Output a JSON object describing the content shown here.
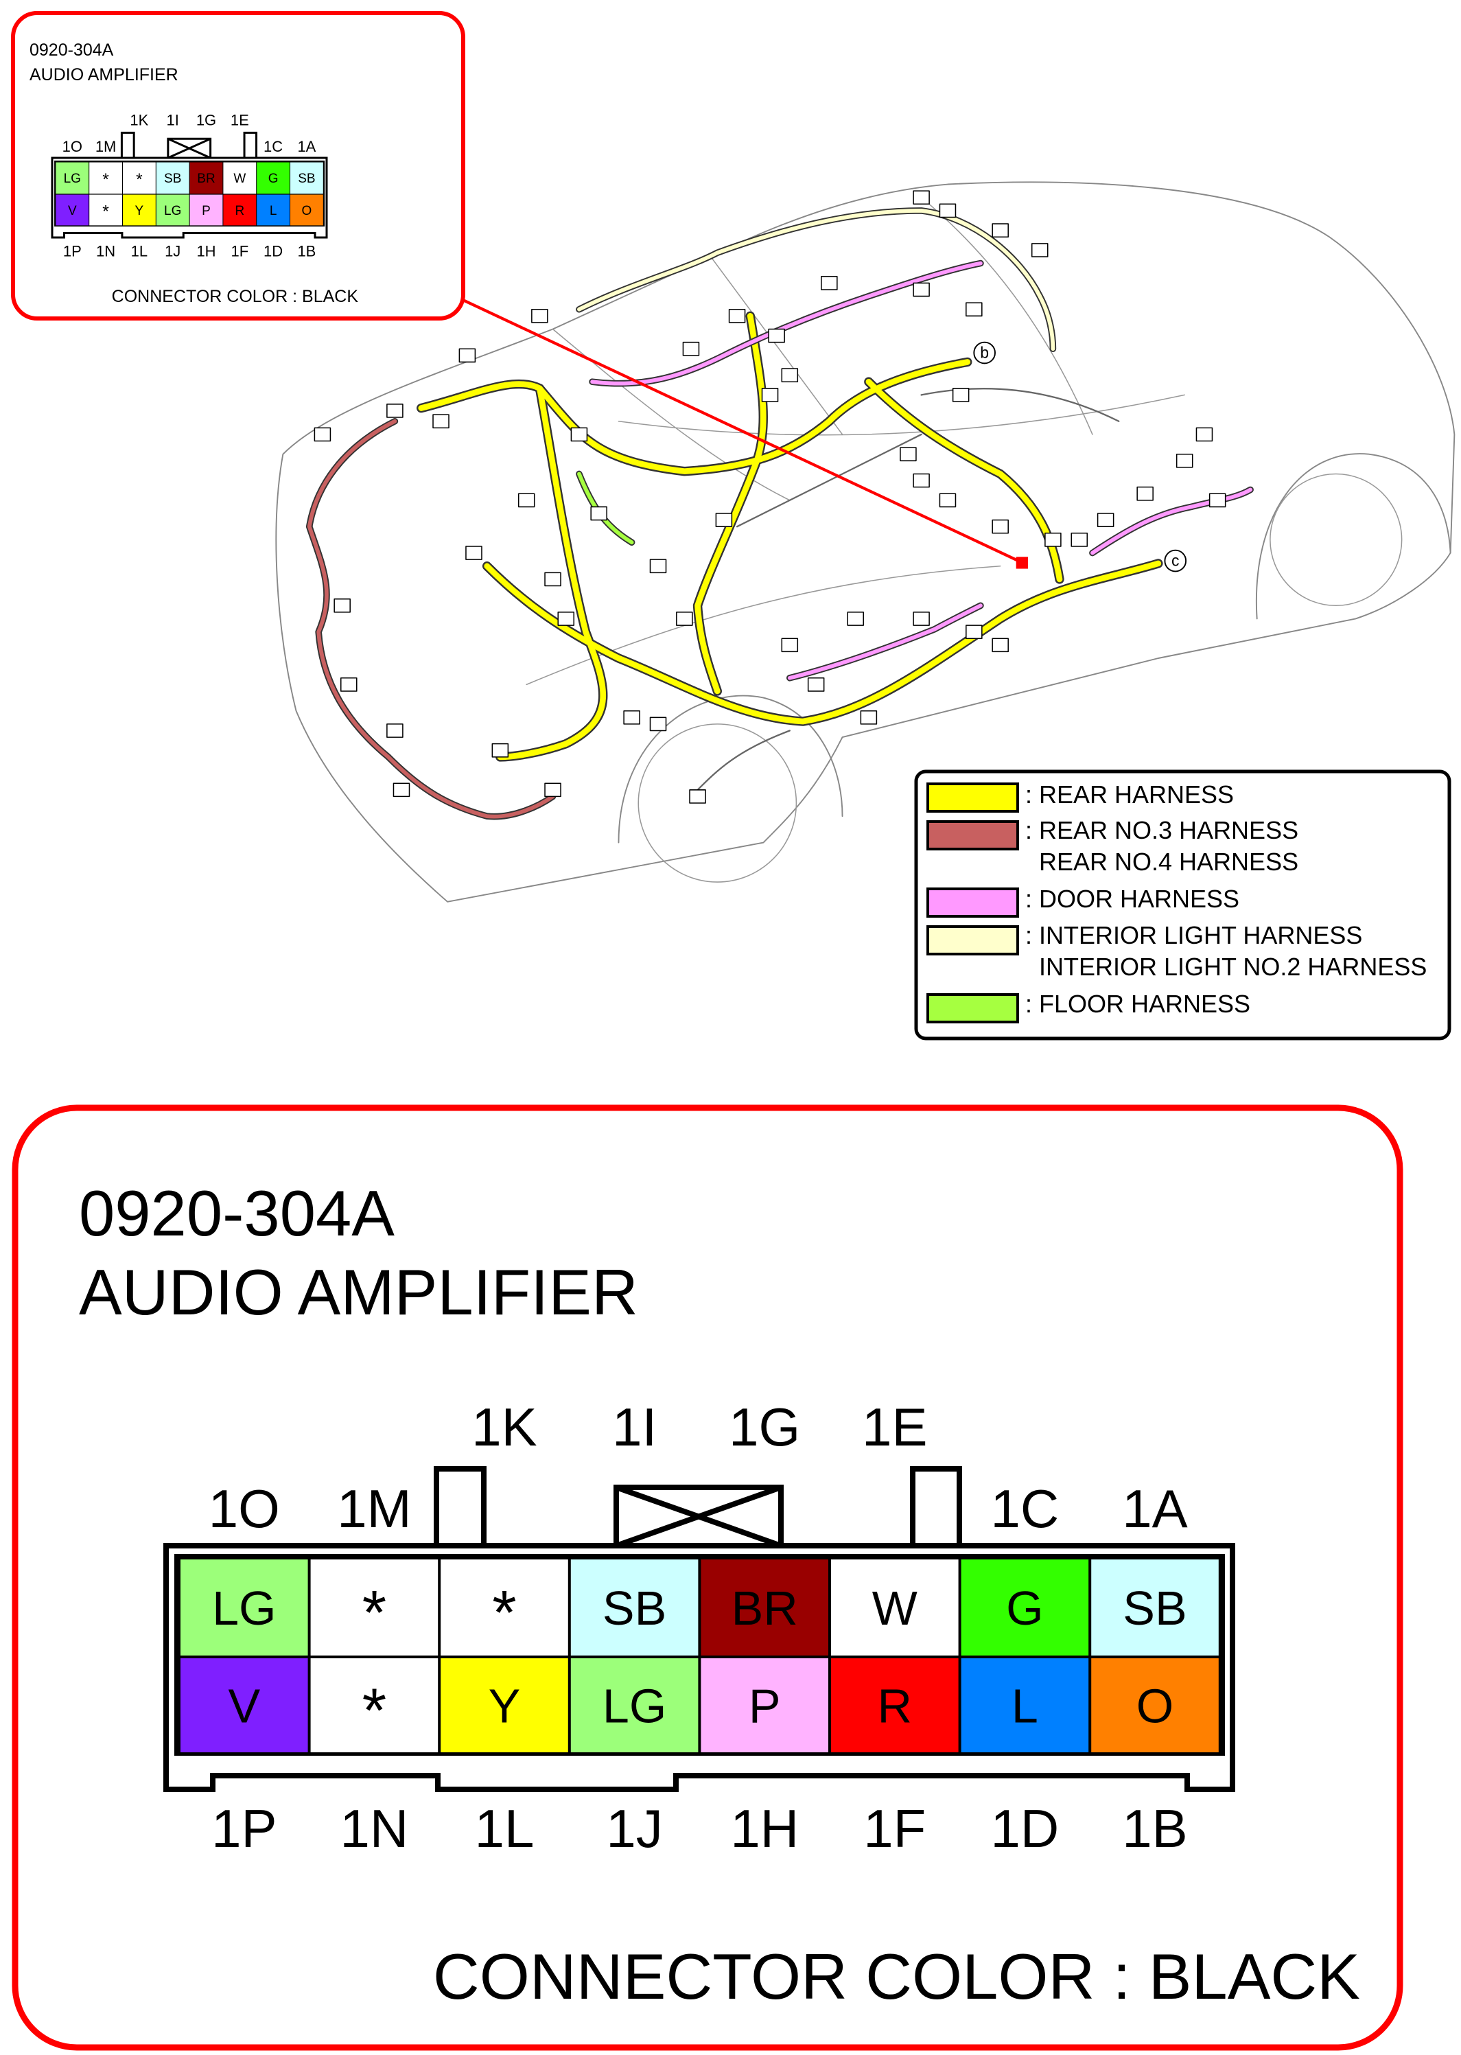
{
  "connector": {
    "code": "0920-304A",
    "name": "AUDIO AMPLIFIER",
    "connector_color_label": "CONNECTOR COLOR : BLACK",
    "top_row": [
      {
        "pin": "1O",
        "wire": "LG",
        "fill": "#9cff7a",
        "text": "#000000"
      },
      {
        "pin": "1M",
        "wire": "*",
        "fill": "#ffffff",
        "text": "#000000"
      },
      {
        "pin": "1K",
        "wire": "*",
        "fill": "#ffffff",
        "text": "#000000"
      },
      {
        "pin": "1I",
        "wire": "SB",
        "fill": "#ccffff",
        "text": "#000000"
      },
      {
        "pin": "1G",
        "wire": "BR",
        "fill": "#990000",
        "text": "#ffffff"
      },
      {
        "pin": "1E",
        "wire": "W",
        "fill": "#ffffff",
        "text": "#000000"
      },
      {
        "pin": "1C",
        "wire": "G",
        "fill": "#33ff00",
        "text": "#000000"
      },
      {
        "pin": "1A",
        "wire": "SB",
        "fill": "#ccffff",
        "text": "#000000"
      }
    ],
    "bottom_row": [
      {
        "pin": "1P",
        "wire": "V",
        "fill": "#7f1fff",
        "text": "#000000"
      },
      {
        "pin": "1N",
        "wire": "*",
        "fill": "#ffffff",
        "text": "#000000"
      },
      {
        "pin": "1L",
        "wire": "Y",
        "fill": "#ffff00",
        "text": "#000000"
      },
      {
        "pin": "1J",
        "wire": "LG",
        "fill": "#9cff7a",
        "text": "#000000"
      },
      {
        "pin": "1H",
        "wire": "P",
        "fill": "#ffb3ff",
        "text": "#000000"
      },
      {
        "pin": "1F",
        "wire": "R",
        "fill": "#ff0000",
        "text": "#000000"
      },
      {
        "pin": "1D",
        "wire": "L",
        "fill": "#0080ff",
        "text": "#000000"
      },
      {
        "pin": "1B",
        "wire": "O",
        "fill": "#ff8000",
        "text": "#000000"
      }
    ],
    "frame_color": "#ff0000"
  },
  "car": {
    "markers": {
      "b": "b",
      "c": "c"
    },
    "harness_colors": {
      "rear": "#ffff00",
      "rear_no3_no4": "#c86060",
      "door": "#ff99ff",
      "interior_light": "#ffffcc",
      "floor": "#a6ff40"
    }
  },
  "legend": [
    {
      "color": "#ffff00",
      "lines": [
        "REAR HARNESS"
      ]
    },
    {
      "color": "#c86060",
      "lines": [
        "REAR NO.3 HARNESS",
        "REAR NO.4 HARNESS"
      ]
    },
    {
      "color": "#ff99ff",
      "lines": [
        "DOOR HARNESS"
      ]
    },
    {
      "color": "#ffffcc",
      "lines": [
        "INTERIOR LIGHT HARNESS",
        "INTERIOR LIGHT NO.2 HARNESS"
      ]
    },
    {
      "color": "#a6ff40",
      "lines": [
        "FLOOR HARNESS"
      ]
    }
  ]
}
